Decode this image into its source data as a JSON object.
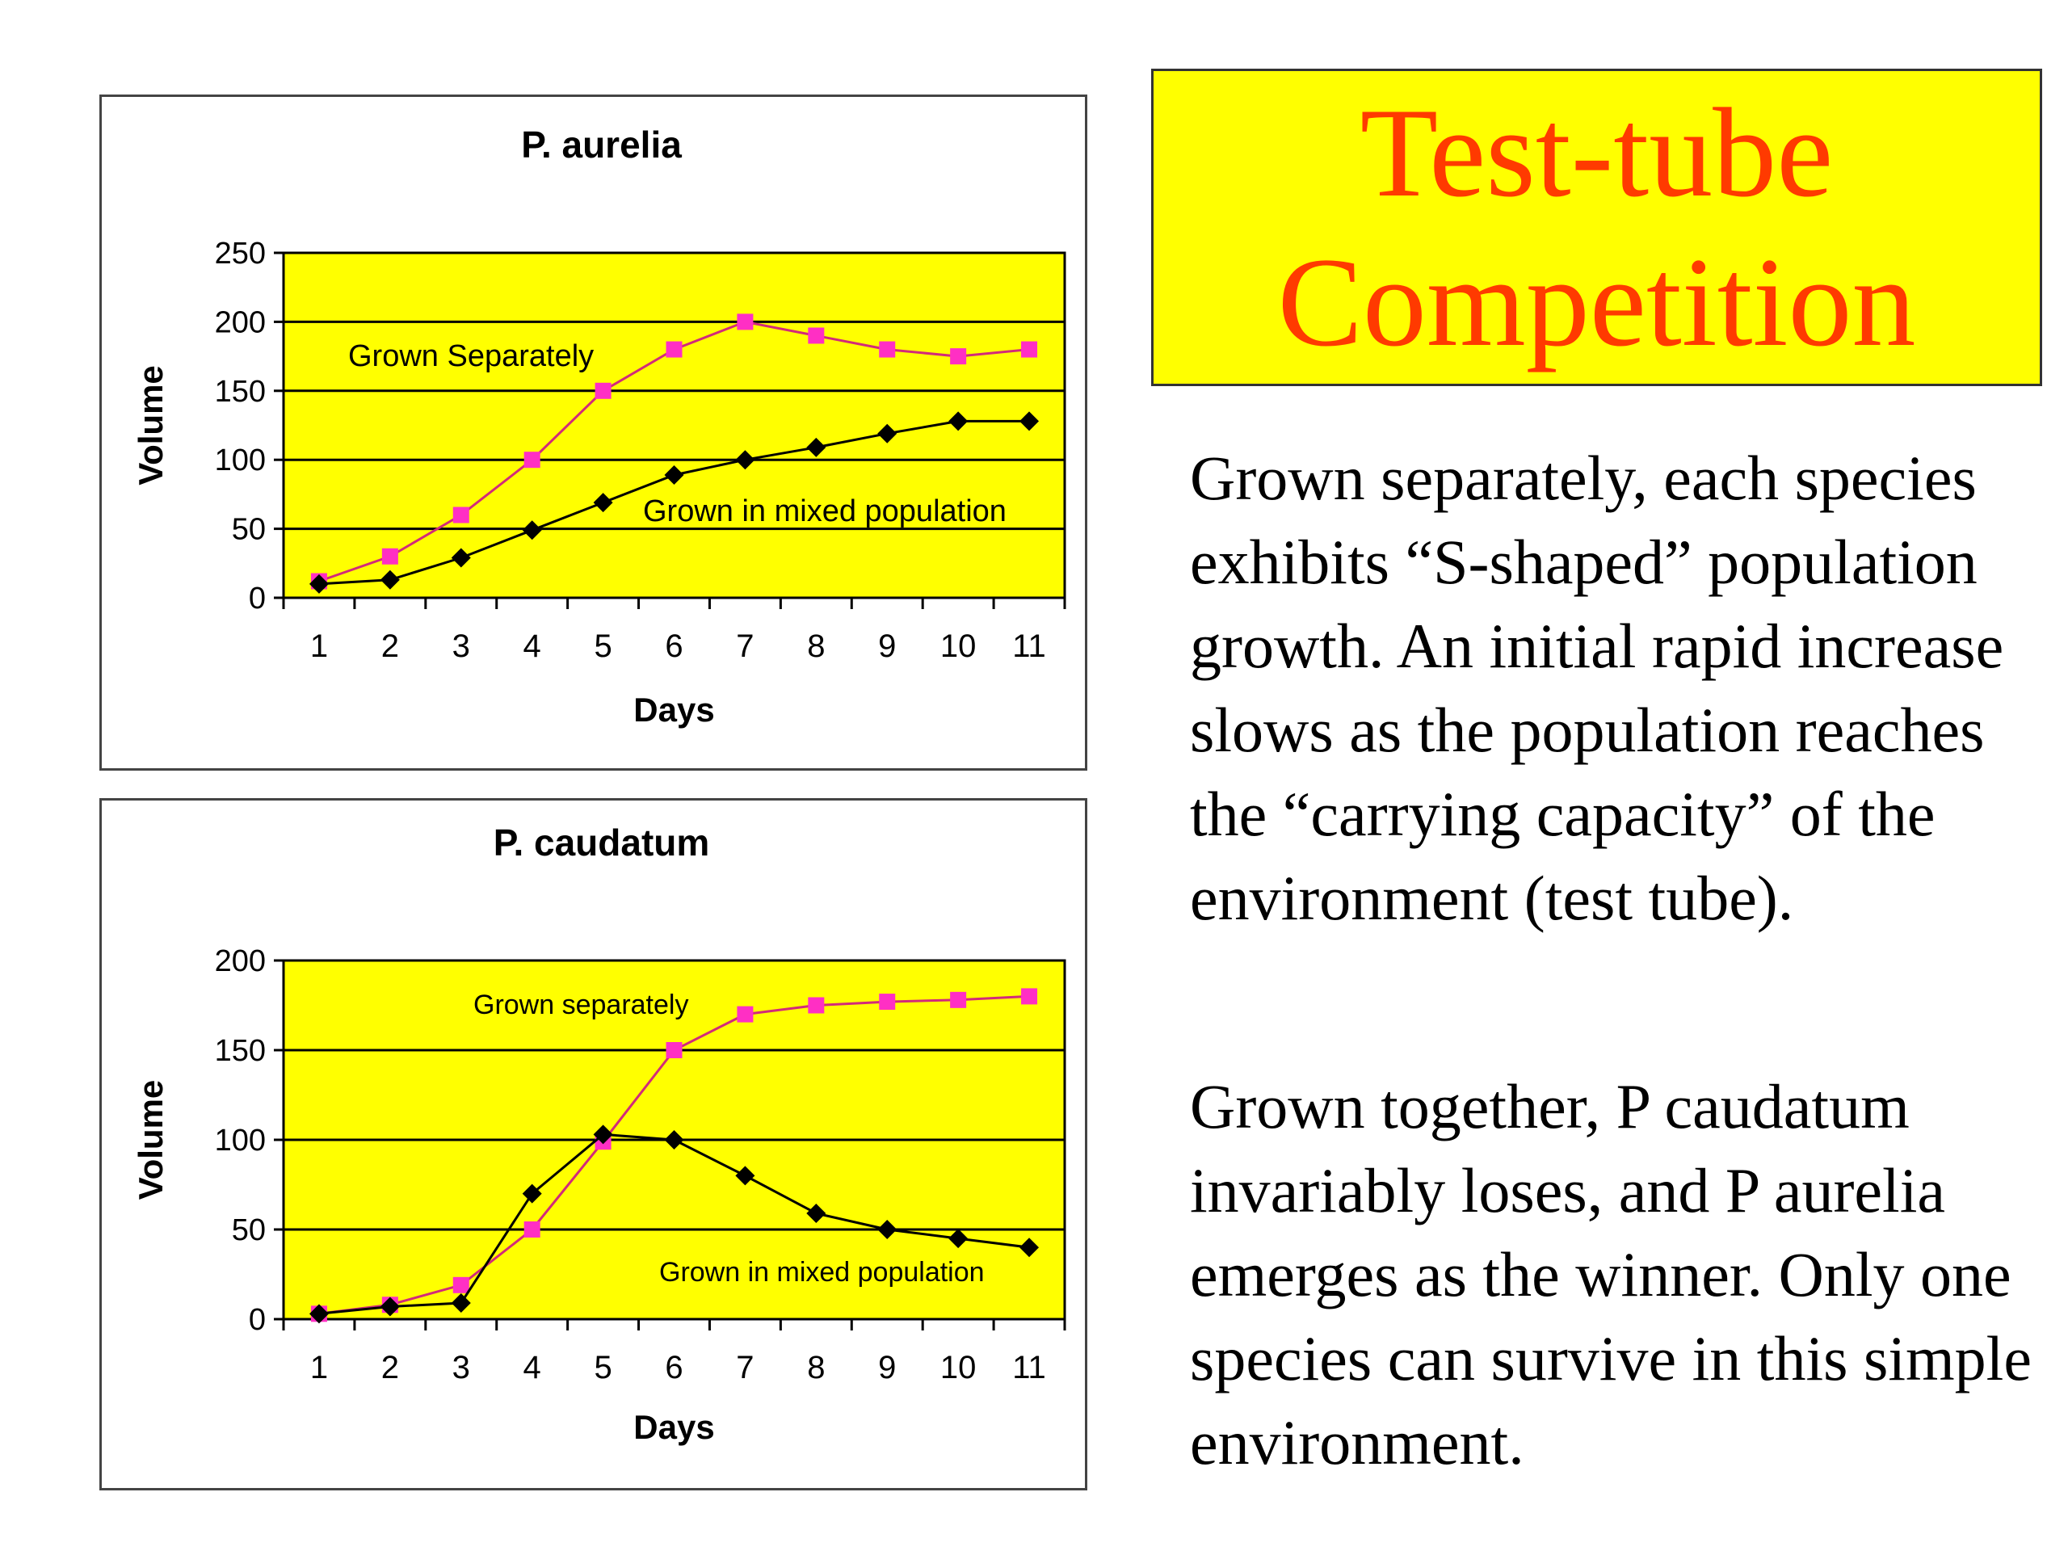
{
  "title_box": {
    "line1": "Test-tube",
    "line2": "Competition"
  },
  "paragraphs": [
    "Grown separately, each species exhibits “S-shaped” population growth.  An initial rapid increase slows as the population reaches the “carrying capacity” of the environment (test tube).",
    "Grown together, P caudatum invariably loses, and P aurelia emerges as the winner.  Only one species can survive in this simple environment."
  ],
  "colors": {
    "plot_background": "#ffff00",
    "separate_series": "#ff2fc4",
    "separate_line": "#d22a7a",
    "mixed_series": "#000000",
    "title_text": "#ff3a00",
    "title_background": "#ffff00"
  },
  "chart_data": [
    {
      "type": "line",
      "title": "P. aurelia",
      "xlabel": "Days",
      "ylabel": "Volume",
      "x": [
        1,
        2,
        3,
        4,
        5,
        6,
        7,
        8,
        9,
        10,
        11
      ],
      "ylim": [
        0,
        250
      ],
      "yticks": [
        0,
        50,
        100,
        150,
        200,
        250
      ],
      "grid": true,
      "series": [
        {
          "name": "Grown Separately",
          "marker": "square",
          "values": [
            12,
            30,
            60,
            100,
            150,
            180,
            200,
            190,
            180,
            175,
            180
          ]
        },
        {
          "name": "Grown in mixed population",
          "marker": "diamond",
          "values": [
            10,
            13,
            29,
            49,
            69,
            89,
            100,
            109,
            119,
            128,
            128
          ]
        }
      ]
    },
    {
      "type": "line",
      "title": "P. caudatum",
      "xlabel": "Days",
      "ylabel": "Volume",
      "x": [
        1,
        2,
        3,
        4,
        5,
        6,
        7,
        8,
        9,
        10,
        11
      ],
      "ylim": [
        0,
        200
      ],
      "yticks": [
        0,
        50,
        100,
        150,
        200
      ],
      "grid": true,
      "series": [
        {
          "name": "Grown separately",
          "marker": "square",
          "values": [
            3,
            8,
            19,
            50,
            99,
            150,
            170,
            175,
            177,
            178,
            180
          ]
        },
        {
          "name": "Grown in mixed population",
          "marker": "diamond",
          "values": [
            3,
            7,
            9,
            70,
            103,
            100,
            80,
            59,
            50,
            45,
            40
          ]
        }
      ]
    }
  ]
}
